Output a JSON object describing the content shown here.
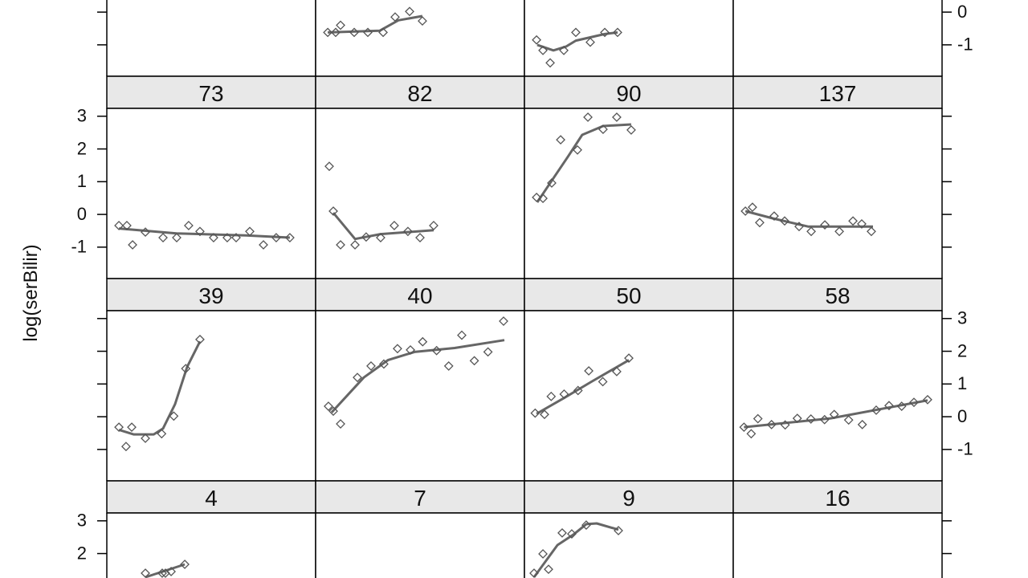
{
  "chart_data": {
    "type": "scatter",
    "ylabel": "log(serBilir)",
    "ylim": [
      -1.96,
      3.24
    ],
    "yticks": [
      -1,
      0,
      1,
      2,
      3
    ],
    "xlim": [
      0,
      15
    ],
    "colors": {
      "points": "#555555",
      "fit": "#666666",
      "strip": "#e8e8e8"
    },
    "rows": [
      [
        {
          "label": "",
          "points": [],
          "fit": []
        },
        {
          "label": "",
          "points": [
            [
              0.87,
              -0.62
            ],
            [
              1.44,
              -0.62
            ],
            [
              1.79,
              -0.4
            ],
            [
              2.77,
              -0.62
            ],
            [
              3.75,
              -0.62
            ],
            [
              4.85,
              -0.62
            ],
            [
              5.71,
              -0.15
            ],
            [
              6.75,
              0.02
            ],
            [
              7.67,
              -0.27
            ]
          ],
          "fit": [
            [
              0.87,
              -0.62
            ],
            [
              4.6,
              -0.57
            ],
            [
              5.94,
              -0.25
            ],
            [
              7.67,
              -0.12
            ]
          ]
        },
        {
          "label": "",
          "points": [
            [
              0.87,
              -0.85
            ],
            [
              1.33,
              -1.17
            ],
            [
              1.85,
              -1.55
            ],
            [
              2.83,
              -1.17
            ],
            [
              3.69,
              -0.62
            ],
            [
              4.73,
              -0.92
            ],
            [
              5.77,
              -0.62
            ],
            [
              6.69,
              -0.62
            ]
          ],
          "fit": [
            [
              0.92,
              -1.0
            ],
            [
              2.08,
              -1.17
            ],
            [
              3.0,
              -1.05
            ],
            [
              3.69,
              -0.87
            ],
            [
              5.77,
              -0.67
            ],
            [
              6.69,
              -0.62
            ]
          ]
        },
        {
          "label": "",
          "points": [],
          "fit": []
        }
      ],
      [
        {
          "label": "73",
          "points": [
            [
              0.87,
              -0.34
            ],
            [
              1.44,
              -0.34
            ],
            [
              1.85,
              -0.93
            ],
            [
              2.77,
              -0.54
            ],
            [
              4.04,
              -0.71
            ],
            [
              5.02,
              -0.71
            ],
            [
              5.88,
              -0.34
            ],
            [
              6.69,
              -0.52
            ],
            [
              7.67,
              -0.71
            ],
            [
              8.65,
              -0.71
            ],
            [
              9.29,
              -0.71
            ],
            [
              10.27,
              -0.52
            ],
            [
              11.25,
              -0.93
            ],
            [
              12.17,
              -0.71
            ],
            [
              13.15,
              -0.71
            ]
          ],
          "fit": [
            [
              0.87,
              -0.43
            ],
            [
              5,
              -0.58
            ],
            [
              10,
              -0.64
            ],
            [
              13.15,
              -0.71
            ]
          ]
        },
        {
          "label": "82",
          "points": [
            [
              0.98,
              1.47
            ],
            [
              1.27,
              0.1
            ],
            [
              1.79,
              -0.93
            ],
            [
              2.83,
              -0.93
            ],
            [
              3.63,
              -0.69
            ],
            [
              4.67,
              -0.71
            ],
            [
              5.65,
              -0.34
            ],
            [
              6.63,
              -0.52
            ],
            [
              7.5,
              -0.71
            ],
            [
              8.48,
              -0.34
            ]
          ],
          "fit": [
            [
              1.27,
              0.05
            ],
            [
              2.83,
              -0.75
            ],
            [
              4.67,
              -0.6
            ],
            [
              8.48,
              -0.48
            ]
          ]
        },
        {
          "label": "90",
          "points": [
            [
              0.87,
              0.52
            ],
            [
              1.33,
              0.49
            ],
            [
              1.96,
              0.96
            ],
            [
              2.6,
              2.28
            ],
            [
              3.81,
              1.97
            ],
            [
              4.56,
              2.97
            ],
            [
              5.65,
              2.6
            ],
            [
              6.63,
              2.97
            ],
            [
              7.67,
              2.58
            ]
          ],
          "fit": [
            [
              0.92,
              0.37
            ],
            [
              1.96,
              1.03
            ],
            [
              3.13,
              1.77
            ],
            [
              4.15,
              2.43
            ],
            [
              5.65,
              2.7
            ],
            [
              7.67,
              2.75
            ]
          ]
        },
        {
          "label": "137",
          "points": [
            [
              0.87,
              0.1
            ],
            [
              1.38,
              0.22
            ],
            [
              1.9,
              -0.25
            ],
            [
              2.94,
              -0.05
            ],
            [
              3.69,
              -0.2
            ],
            [
              4.73,
              -0.37
            ],
            [
              5.6,
              -0.52
            ],
            [
              6.58,
              -0.32
            ],
            [
              7.62,
              -0.52
            ],
            [
              8.6,
              -0.2
            ],
            [
              9.23,
              -0.29
            ],
            [
              9.92,
              -0.52
            ]
          ],
          "fit": [
            [
              0.87,
              0.1
            ],
            [
              2.83,
              -0.12
            ],
            [
              5.37,
              -0.37
            ],
            [
              10.04,
              -0.37
            ]
          ]
        }
      ],
      [
        {
          "label": "39",
          "points": [
            [
              0.87,
              -0.32
            ],
            [
              1.38,
              -0.91
            ],
            [
              1.79,
              -0.32
            ],
            [
              2.77,
              -0.66
            ],
            [
              3.94,
              -0.52
            ],
            [
              4.81,
              0.02
            ],
            [
              5.67,
              1.47
            ],
            [
              6.69,
              2.36
            ]
          ],
          "fit": [
            [
              0.87,
              -0.4
            ],
            [
              1.92,
              -0.54
            ],
            [
              3.37,
              -0.54
            ],
            [
              4.04,
              -0.36
            ],
            [
              4.9,
              0.38
            ],
            [
              5.77,
              1.52
            ],
            [
              6.69,
              2.3
            ]
          ]
        },
        {
          "label": "40",
          "points": [
            [
              0.92,
              0.32
            ],
            [
              1.27,
              0.17
            ],
            [
              1.79,
              -0.22
            ],
            [
              3.0,
              1.2
            ],
            [
              3.98,
              1.55
            ],
            [
              4.9,
              1.61
            ],
            [
              5.88,
              2.08
            ],
            [
              6.81,
              2.04
            ],
            [
              7.69,
              2.29
            ],
            [
              8.69,
              2.02
            ],
            [
              9.56,
              1.55
            ],
            [
              10.5,
              2.49
            ],
            [
              11.4,
              1.71
            ],
            [
              12.38,
              1.98
            ],
            [
              13.5,
              2.92
            ]
          ],
          "fit": [
            [
              1.15,
              0.13
            ],
            [
              3.46,
              1.2
            ],
            [
              5.19,
              1.73
            ],
            [
              7.11,
              1.98
            ],
            [
              9.98,
              2.1
            ],
            [
              13.56,
              2.34
            ]
          ]
        },
        {
          "label": "50",
          "points": [
            [
              0.77,
              0.11
            ],
            [
              1.44,
              0.07
            ],
            [
              1.92,
              0.62
            ],
            [
              2.85,
              0.69
            ],
            [
              3.85,
              0.8
            ],
            [
              4.62,
              1.4
            ],
            [
              5.63,
              1.07
            ],
            [
              6.63,
              1.38
            ],
            [
              7.5,
              1.79
            ]
          ],
          "fit": [
            [
              0.87,
              0.09
            ],
            [
              2.88,
              0.58
            ],
            [
              4.81,
              1.07
            ],
            [
              7.5,
              1.73
            ]
          ]
        },
        {
          "label": "58",
          "points": [
            [
              0.77,
              -0.32
            ],
            [
              1.29,
              -0.52
            ],
            [
              1.77,
              -0.06
            ],
            [
              2.75,
              -0.24
            ],
            [
              3.73,
              -0.25
            ],
            [
              4.6,
              -0.05
            ],
            [
              5.58,
              -0.07
            ],
            [
              6.56,
              -0.09
            ],
            [
              7.25,
              0.07
            ],
            [
              8.29,
              -0.1
            ],
            [
              9.27,
              -0.24
            ],
            [
              10.27,
              0.2
            ],
            [
              11.19,
              0.34
            ],
            [
              12.1,
              0.32
            ],
            [
              12.98,
              0.44
            ],
            [
              13.96,
              0.52
            ]
          ],
          "fit": [
            [
              0.77,
              -0.32
            ],
            [
              7.0,
              -0.05
            ],
            [
              13.96,
              0.5
            ]
          ]
        }
      ],
      [
        {
          "label": "4",
          "points": [
            [
              2.77,
              1.28
            ],
            [
              3.98,
              1.33
            ],
            [
              4.21,
              1.4
            ],
            [
              4.62,
              1.45
            ],
            [
              5.6,
              1.67
            ]
          ],
          "fit": [
            [
              2.77,
              1.25
            ],
            [
              5.6,
              1.67
            ]
          ]
        },
        {
          "label": "7",
          "points": [],
          "fit": []
        },
        {
          "label": "9",
          "points": [
            [
              0.69,
              1.3
            ],
            [
              1.33,
              1.99
            ],
            [
              1.73,
              1.52
            ],
            [
              2.71,
              2.63
            ],
            [
              3.4,
              2.6
            ],
            [
              4.44,
              2.87
            ],
            [
              6.75,
              2.7
            ]
          ],
          "fit": [
            [
              0.69,
              1.28
            ],
            [
              2.37,
              2.26
            ],
            [
              3.52,
              2.58
            ],
            [
              4.44,
              2.9
            ],
            [
              5.19,
              2.92
            ],
            [
              6.75,
              2.73
            ]
          ]
        },
        {
          "label": "16",
          "points": [],
          "fit": []
        }
      ]
    ]
  }
}
